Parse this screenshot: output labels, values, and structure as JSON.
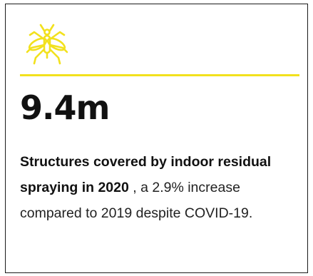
{
  "card": {
    "icon": "mosquito-icon",
    "accent_color": "#f2e11d",
    "stat_value": "9.4m",
    "description_lead": "Structures covered by indoor residual spraying in 2020",
    "description_rest": " , a 2.9% increase compared to 2019 despite COVID-19."
  }
}
